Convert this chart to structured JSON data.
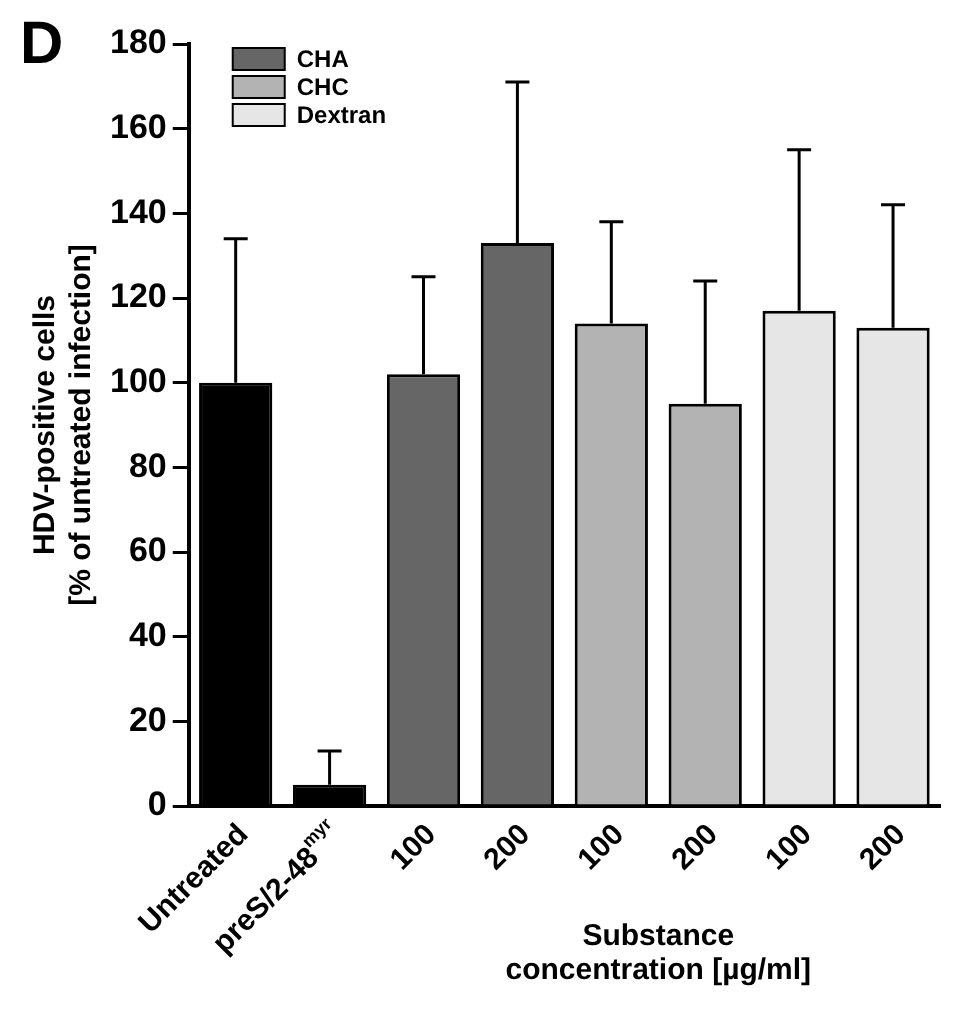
{
  "chart_data": {
    "type": "bar",
    "title": "D",
    "categories": [
      "Untreated",
      "preS/2-48$^{myr}$",
      "100",
      "200",
      "100",
      "200",
      "100",
      "200"
    ],
    "series": [
      {
        "color": "#000000",
        "values": [
          100,
          5,
          null,
          null,
          null,
          null,
          null,
          null
        ],
        "errors": [
          [
            100,
            134
          ],
          [
            5,
            13
          ],
          null,
          null,
          null,
          null,
          null,
          null
        ]
      },
      {
        "name": "CHA",
        "color": "#666666",
        "values": [
          null,
          null,
          102,
          133,
          null,
          null,
          null,
          null
        ],
        "errors": [
          null,
          null,
          [
            102,
            125
          ],
          [
            133,
            171
          ],
          null,
          null,
          null,
          null
        ]
      },
      {
        "name": "CHC",
        "color": "#b3b3b3",
        "values": [
          null,
          null,
          null,
          null,
          114,
          95,
          null,
          null
        ],
        "errors": [
          null,
          null,
          null,
          null,
          [
            114,
            138
          ],
          [
            95,
            124
          ],
          null,
          null
        ]
      },
      {
        "name": "Dextran",
        "color": "#e6e6e6",
        "values": [
          null,
          null,
          null,
          null,
          null,
          null,
          117,
          113
        ],
        "errors": [
          null,
          null,
          null,
          null,
          null,
          null,
          [
            117,
            155
          ],
          [
            113,
            142
          ]
        ]
      }
    ],
    "xlabel": "Substance\nconcentration [µg/ml]",
    "ylabel": "HDV-positive cells\n[% of untreated infection]",
    "ylim": [
      0,
      180
    ],
    "yticks": [
      0,
      20,
      40,
      60,
      80,
      100,
      120,
      140,
      160,
      180
    ],
    "legend": "top left",
    "grid": false
  }
}
